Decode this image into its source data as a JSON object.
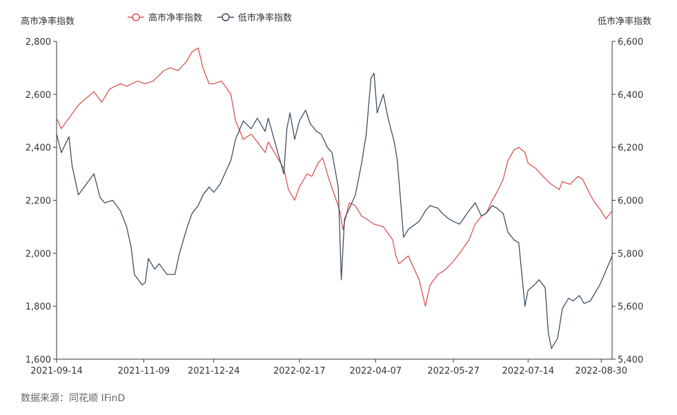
{
  "source": "数据来源：同花顺 IFinD",
  "colors": {
    "high_series": "#d9534f",
    "low_series": "#3e4e61",
    "axis": "#333333"
  },
  "chart_data": {
    "type": "line",
    "legend_position": "top",
    "grid": false,
    "xlabel": "",
    "ylabel_left": "高市净率指数",
    "ylabel_right": "低市净率指数",
    "y_left_lim": [
      1600,
      2800
    ],
    "y_right_lim": [
      5400,
      6600
    ],
    "y_left_ticks": [
      "1,600",
      "1,800",
      "2,000",
      "2,200",
      "2,400",
      "2,600",
      "2,800"
    ],
    "y_right_ticks": [
      "5,400",
      "5,600",
      "5,800",
      "6,000",
      "6,200",
      "6,400",
      "6,600"
    ],
    "x_tick_labels": [
      "2021-09-14",
      "2021-11-09",
      "2021-12-24",
      "2022-02-17",
      "2022-04-07",
      "2022-05-27",
      "2022-07-14",
      "2022-08-30"
    ],
    "x_tick_dates": [
      "2021-09-14",
      "2021-11-09",
      "2021-12-24",
      "2022-02-17",
      "2022-04-07",
      "2022-05-27",
      "2022-07-14",
      "2022-08-30"
    ],
    "x_range": [
      "2021-09-14",
      "2022-09-06"
    ],
    "series": [
      {
        "name": "高市净率指数",
        "axis": "left",
        "points": [
          [
            "2021-09-14",
            2510
          ],
          [
            "2021-09-17",
            2470
          ],
          [
            "2021-09-22",
            2510
          ],
          [
            "2021-09-28",
            2560
          ],
          [
            "2021-10-08",
            2610
          ],
          [
            "2021-10-13",
            2570
          ],
          [
            "2021-10-18",
            2620
          ],
          [
            "2021-10-25",
            2640
          ],
          [
            "2021-10-29",
            2630
          ],
          [
            "2021-11-05",
            2650
          ],
          [
            "2021-11-10",
            2640
          ],
          [
            "2021-11-15",
            2650
          ],
          [
            "2021-11-22",
            2690
          ],
          [
            "2021-11-26",
            2700
          ],
          [
            "2021-12-01",
            2690
          ],
          [
            "2021-12-06",
            2720
          ],
          [
            "2021-12-10",
            2760
          ],
          [
            "2021-12-14",
            2775
          ],
          [
            "2021-12-17",
            2700
          ],
          [
            "2021-12-21",
            2640
          ],
          [
            "2021-12-24",
            2640
          ],
          [
            "2021-12-29",
            2650
          ],
          [
            "2022-01-04",
            2600
          ],
          [
            "2022-01-07",
            2500
          ],
          [
            "2022-01-12",
            2430
          ],
          [
            "2022-01-17",
            2450
          ],
          [
            "2022-01-21",
            2420
          ],
          [
            "2022-01-26",
            2380
          ],
          [
            "2022-01-28",
            2420
          ],
          [
            "2022-02-07",
            2320
          ],
          [
            "2022-02-10",
            2240
          ],
          [
            "2022-02-14",
            2200
          ],
          [
            "2022-02-17",
            2250
          ],
          [
            "2022-02-22",
            2300
          ],
          [
            "2022-02-25",
            2290
          ],
          [
            "2022-03-01",
            2340
          ],
          [
            "2022-03-04",
            2360
          ],
          [
            "2022-03-08",
            2280
          ],
          [
            "2022-03-11",
            2230
          ],
          [
            "2022-03-15",
            2160
          ],
          [
            "2022-03-17",
            2090
          ],
          [
            "2022-03-21",
            2190
          ],
          [
            "2022-03-25",
            2180
          ],
          [
            "2022-03-29",
            2140
          ],
          [
            "2022-04-01",
            2130
          ],
          [
            "2022-04-06",
            2110
          ],
          [
            "2022-04-12",
            2100
          ],
          [
            "2022-04-18",
            2050
          ],
          [
            "2022-04-20",
            1990
          ],
          [
            "2022-04-22",
            1960
          ],
          [
            "2022-04-26",
            1980
          ],
          [
            "2022-04-28",
            1990
          ],
          [
            "2022-05-05",
            1900
          ],
          [
            "2022-05-09",
            1800
          ],
          [
            "2022-05-12",
            1880
          ],
          [
            "2022-05-17",
            1920
          ],
          [
            "2022-05-20",
            1930
          ],
          [
            "2022-05-24",
            1950
          ],
          [
            "2022-05-27",
            1970
          ],
          [
            "2022-05-31",
            2000
          ],
          [
            "2022-06-06",
            2050
          ],
          [
            "2022-06-10",
            2110
          ],
          [
            "2022-06-14",
            2140
          ],
          [
            "2022-06-17",
            2150
          ],
          [
            "2022-06-21",
            2200
          ],
          [
            "2022-06-24",
            2230
          ],
          [
            "2022-06-28",
            2280
          ],
          [
            "2022-07-01",
            2350
          ],
          [
            "2022-07-05",
            2390
          ],
          [
            "2022-07-08",
            2400
          ],
          [
            "2022-07-12",
            2380
          ],
          [
            "2022-07-14",
            2340
          ],
          [
            "2022-07-19",
            2320
          ],
          [
            "2022-07-22",
            2300
          ],
          [
            "2022-07-27",
            2270
          ],
          [
            "2022-07-29",
            2260
          ],
          [
            "2022-08-03",
            2240
          ],
          [
            "2022-08-05",
            2270
          ],
          [
            "2022-08-10",
            2260
          ],
          [
            "2022-08-15",
            2290
          ],
          [
            "2022-08-18",
            2280
          ],
          [
            "2022-08-23",
            2220
          ],
          [
            "2022-08-26",
            2190
          ],
          [
            "2022-08-30",
            2160
          ],
          [
            "2022-09-02",
            2130
          ],
          [
            "2022-09-06",
            2160
          ]
        ]
      },
      {
        "name": "低市净率指数",
        "axis": "right",
        "points": [
          [
            "2021-09-14",
            6250
          ],
          [
            "2021-09-17",
            6180
          ],
          [
            "2021-09-22",
            6240
          ],
          [
            "2021-09-24",
            6130
          ],
          [
            "2021-09-28",
            6020
          ],
          [
            "2021-10-08",
            6100
          ],
          [
            "2021-10-12",
            6010
          ],
          [
            "2021-10-15",
            5990
          ],
          [
            "2021-10-20",
            6000
          ],
          [
            "2021-10-25",
            5960
          ],
          [
            "2021-10-29",
            5900
          ],
          [
            "2021-11-01",
            5820
          ],
          [
            "2021-11-03",
            5720
          ],
          [
            "2021-11-08",
            5680
          ],
          [
            "2021-11-10",
            5690
          ],
          [
            "2021-11-12",
            5780
          ],
          [
            "2021-11-16",
            5740
          ],
          [
            "2021-11-19",
            5760
          ],
          [
            "2021-11-24",
            5720
          ],
          [
            "2021-11-29",
            5720
          ],
          [
            "2021-12-02",
            5800
          ],
          [
            "2021-12-07",
            5900
          ],
          [
            "2021-12-10",
            5950
          ],
          [
            "2021-12-14",
            5980
          ],
          [
            "2021-12-17",
            6020
          ],
          [
            "2021-12-21",
            6050
          ],
          [
            "2021-12-24",
            6030
          ],
          [
            "2021-12-28",
            6060
          ],
          [
            "2022-01-04",
            6150
          ],
          [
            "2022-01-07",
            6230
          ],
          [
            "2022-01-12",
            6300
          ],
          [
            "2022-01-17",
            6270
          ],
          [
            "2022-01-21",
            6310
          ],
          [
            "2022-01-26",
            6260
          ],
          [
            "2022-01-28",
            6310
          ],
          [
            "2022-02-07",
            6100
          ],
          [
            "2022-02-09",
            6270
          ],
          [
            "2022-02-11",
            6330
          ],
          [
            "2022-02-14",
            6230
          ],
          [
            "2022-02-17",
            6300
          ],
          [
            "2022-02-21",
            6340
          ],
          [
            "2022-02-24",
            6290
          ],
          [
            "2022-02-28",
            6260
          ],
          [
            "2022-03-03",
            6250
          ],
          [
            "2022-03-07",
            6200
          ],
          [
            "2022-03-10",
            6180
          ],
          [
            "2022-03-14",
            6050
          ],
          [
            "2022-03-16",
            5700
          ],
          [
            "2022-03-18",
            5930
          ],
          [
            "2022-03-22",
            5980
          ],
          [
            "2022-03-25",
            6020
          ],
          [
            "2022-03-29",
            6140
          ],
          [
            "2022-04-01",
            6250
          ],
          [
            "2022-04-04",
            6460
          ],
          [
            "2022-04-06",
            6480
          ],
          [
            "2022-04-08",
            6330
          ],
          [
            "2022-04-12",
            6400
          ],
          [
            "2022-04-15",
            6310
          ],
          [
            "2022-04-19",
            6220
          ],
          [
            "2022-04-21",
            6150
          ],
          [
            "2022-04-25",
            5860
          ],
          [
            "2022-04-28",
            5890
          ],
          [
            "2022-05-05",
            5920
          ],
          [
            "2022-05-09",
            5960
          ],
          [
            "2022-05-12",
            5980
          ],
          [
            "2022-05-17",
            5970
          ],
          [
            "2022-05-20",
            5950
          ],
          [
            "2022-05-24",
            5930
          ],
          [
            "2022-05-27",
            5920
          ],
          [
            "2022-05-31",
            5910
          ],
          [
            "2022-06-06",
            5960
          ],
          [
            "2022-06-10",
            5990
          ],
          [
            "2022-06-14",
            5940
          ],
          [
            "2022-06-17",
            5950
          ],
          [
            "2022-06-21",
            5980
          ],
          [
            "2022-06-24",
            5970
          ],
          [
            "2022-06-28",
            5950
          ],
          [
            "2022-07-01",
            5880
          ],
          [
            "2022-07-05",
            5850
          ],
          [
            "2022-07-08",
            5840
          ],
          [
            "2022-07-12",
            5600
          ],
          [
            "2022-07-14",
            5660
          ],
          [
            "2022-07-18",
            5680
          ],
          [
            "2022-07-21",
            5700
          ],
          [
            "2022-07-25",
            5670
          ],
          [
            "2022-07-27",
            5500
          ],
          [
            "2022-07-29",
            5440
          ],
          [
            "2022-08-02",
            5480
          ],
          [
            "2022-08-05",
            5590
          ],
          [
            "2022-08-09",
            5630
          ],
          [
            "2022-08-12",
            5620
          ],
          [
            "2022-08-16",
            5640
          ],
          [
            "2022-08-19",
            5610
          ],
          [
            "2022-08-23",
            5620
          ],
          [
            "2022-08-26",
            5650
          ],
          [
            "2022-08-29",
            5680
          ],
          [
            "2022-09-01",
            5720
          ],
          [
            "2022-09-06",
            5790
          ]
        ]
      }
    ]
  }
}
